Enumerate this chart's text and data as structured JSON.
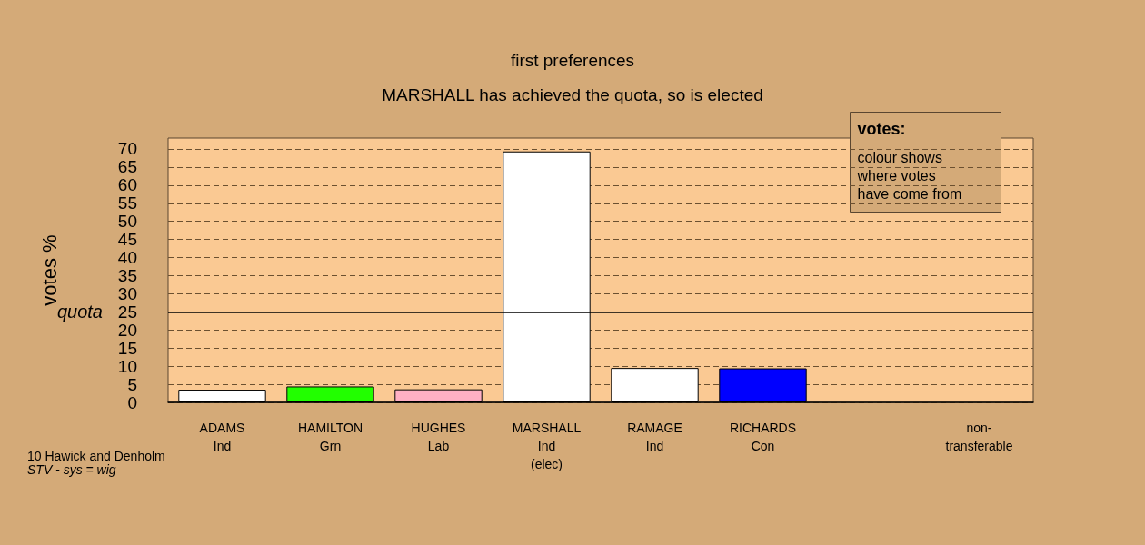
{
  "chart_data": {
    "type": "bar",
    "title": "first preferences",
    "subtitle": "MARSHALL has achieved the quota, so is elected",
    "ylabel": "votes %",
    "categories": [
      "ADAMS\nInd",
      "HAMILTON\nGrn",
      "HUGHES\nLab",
      "MARSHALL\nInd\n(elec)",
      "RAMAGE\nInd",
      "RICHARDS\nCon",
      null,
      "non-\ntransferable"
    ],
    "values": [
      3.5,
      4.4,
      3.6,
      69.3,
      9.5,
      9.4,
      null,
      null
    ],
    "colors": [
      "#ffffff",
      "#22ff00",
      "#ffb0c4",
      "#ffffff",
      "#ffffff",
      "#0000ff",
      "#ffffff",
      "#ffffff"
    ],
    "ylim": [
      0,
      73
    ],
    "yticks": [
      0,
      5,
      10,
      15,
      20,
      25,
      30,
      35,
      40,
      45,
      50,
      55,
      60,
      65,
      70
    ],
    "grid": true,
    "ref_lines": [
      {
        "axis": "y",
        "value": 25,
        "label": "quota",
        "color": "#000000",
        "line_style": "solid"
      }
    ],
    "annotations": [
      "votes:",
      "colour shows\nwhere votes\nhave come from",
      "10 Hawick and Denholm",
      "STV - sys = wig"
    ]
  }
}
